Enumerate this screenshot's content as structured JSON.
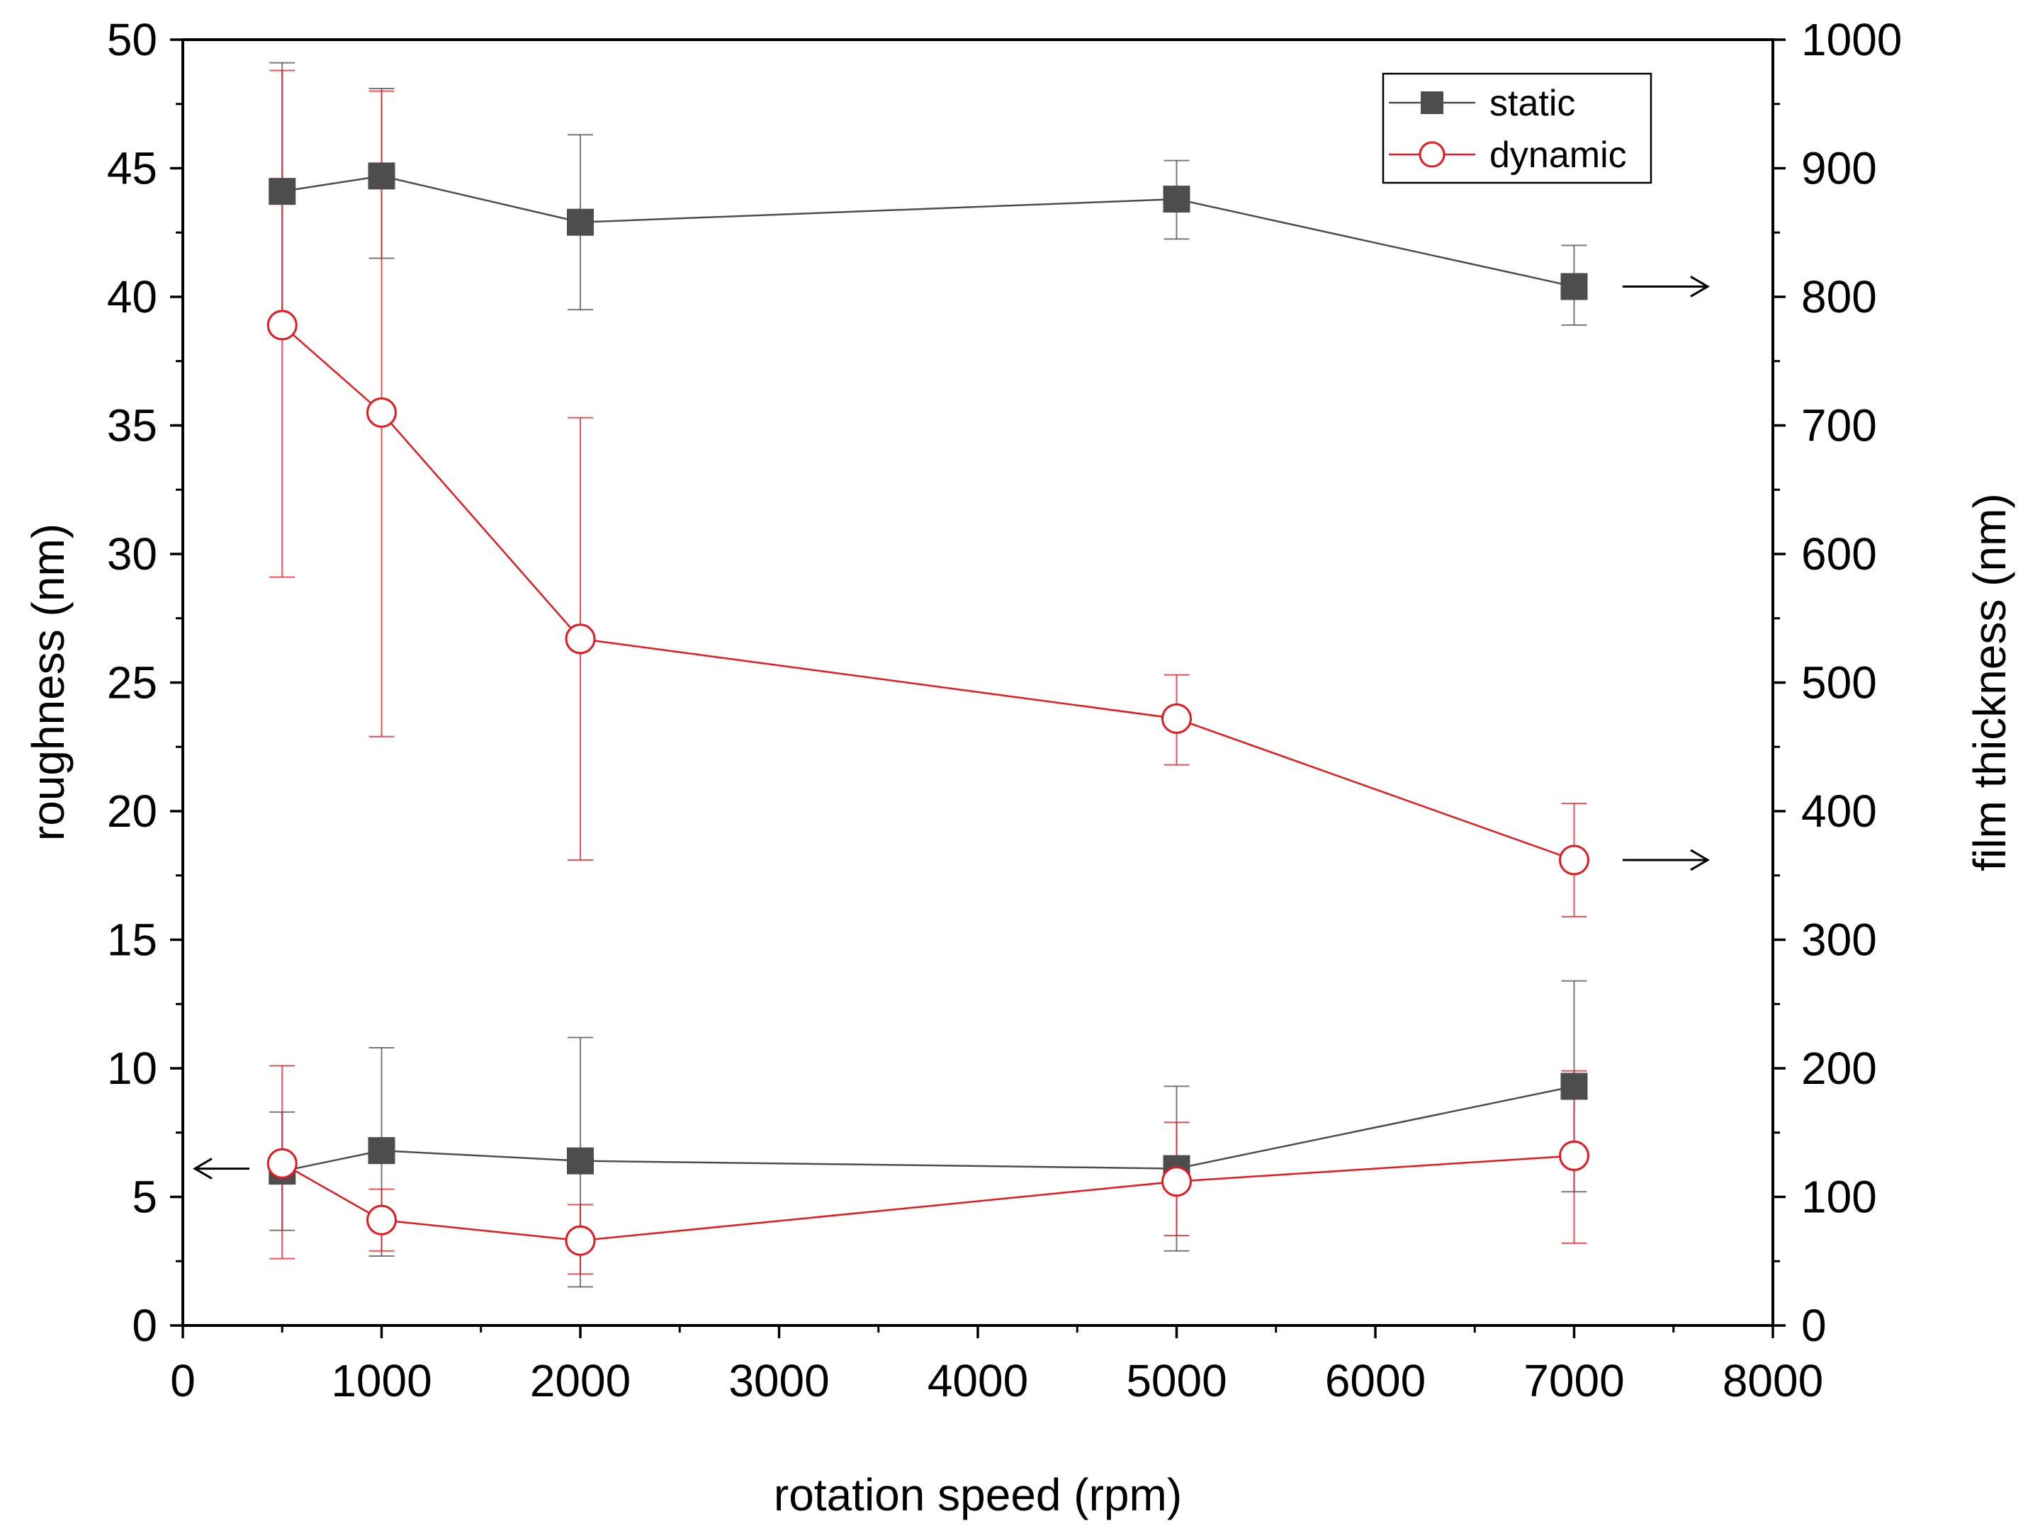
{
  "chart_data": {
    "type": "scatter",
    "xlabel": "rotation speed (rpm)",
    "ylabel_left": "roughness (nm)",
    "ylabel_right": "film thickness (nm)",
    "xlim": [
      0,
      8000
    ],
    "ylim_left": [
      0,
      50
    ],
    "ylim_right": [
      0,
      1000
    ],
    "x_ticks": [
      0,
      1000,
      2000,
      3000,
      4000,
      5000,
      6000,
      7000,
      8000
    ],
    "y_left_ticks": [
      0,
      5,
      10,
      15,
      20,
      25,
      30,
      35,
      40,
      45,
      50
    ],
    "y_right_ticks": [
      0,
      100,
      200,
      300,
      400,
      500,
      600,
      700,
      800,
      900,
      1000
    ],
    "grid": false,
    "legend_position": "top-right",
    "legend": [
      {
        "label": "static",
        "marker": "filled-square",
        "color": "#4d4d4d"
      },
      {
        "label": "dynamic",
        "marker": "open-circle",
        "color": "#e8191e"
      }
    ],
    "series": [
      {
        "legend": "static",
        "quantity": "film thickness",
        "axis": "right",
        "color": "#4d4d4d",
        "marker": "filled-square",
        "x": [
          500,
          1000,
          2000,
          5000,
          7000
        ],
        "y": [
          882,
          894,
          858,
          876,
          808
        ],
        "err_low": [
          780,
          830,
          790,
          845,
          778
        ],
        "err_high": [
          982,
          962,
          926,
          906,
          840
        ]
      },
      {
        "legend": "dynamic",
        "quantity": "film thickness",
        "axis": "right",
        "color": "#e8191e",
        "marker": "open-circle",
        "x": [
          500,
          1000,
          2000,
          5000,
          7000
        ],
        "y": [
          778,
          710,
          534,
          472,
          362
        ],
        "err_low": [
          582,
          458,
          362,
          436,
          318
        ],
        "err_high": [
          976,
          960,
          706,
          506,
          406
        ]
      },
      {
        "legend": "static",
        "quantity": "roughness",
        "axis": "left",
        "color": "#4d4d4d",
        "marker": "filled-square",
        "x": [
          500,
          1000,
          2000,
          5000,
          7000
        ],
        "y": [
          6.0,
          6.8,
          6.4,
          6.1,
          9.3
        ],
        "err_low": [
          3.7,
          2.7,
          1.5,
          2.9,
          5.2
        ],
        "err_high": [
          8.3,
          10.8,
          11.2,
          9.3,
          13.4
        ]
      },
      {
        "legend": "dynamic",
        "quantity": "roughness",
        "axis": "left",
        "color": "#e8191e",
        "marker": "open-circle",
        "x": [
          500,
          1000,
          2000,
          5000,
          7000
        ],
        "y": [
          6.3,
          4.1,
          3.3,
          5.6,
          6.6
        ],
        "err_low": [
          2.6,
          2.9,
          2.0,
          3.5,
          3.2
        ],
        "err_high": [
          10.1,
          5.3,
          4.7,
          7.9,
          9.9
        ]
      }
    ],
    "annotations": [
      {
        "kind": "arrow",
        "direction": "left",
        "points_to": "roughness axis",
        "series": "roughness"
      },
      {
        "kind": "arrow",
        "direction": "right",
        "points_to": "film thickness axis",
        "series": "static film thickness"
      },
      {
        "kind": "arrow",
        "direction": "right",
        "points_to": "film thickness axis",
        "series": "dynamic film thickness"
      }
    ]
  }
}
